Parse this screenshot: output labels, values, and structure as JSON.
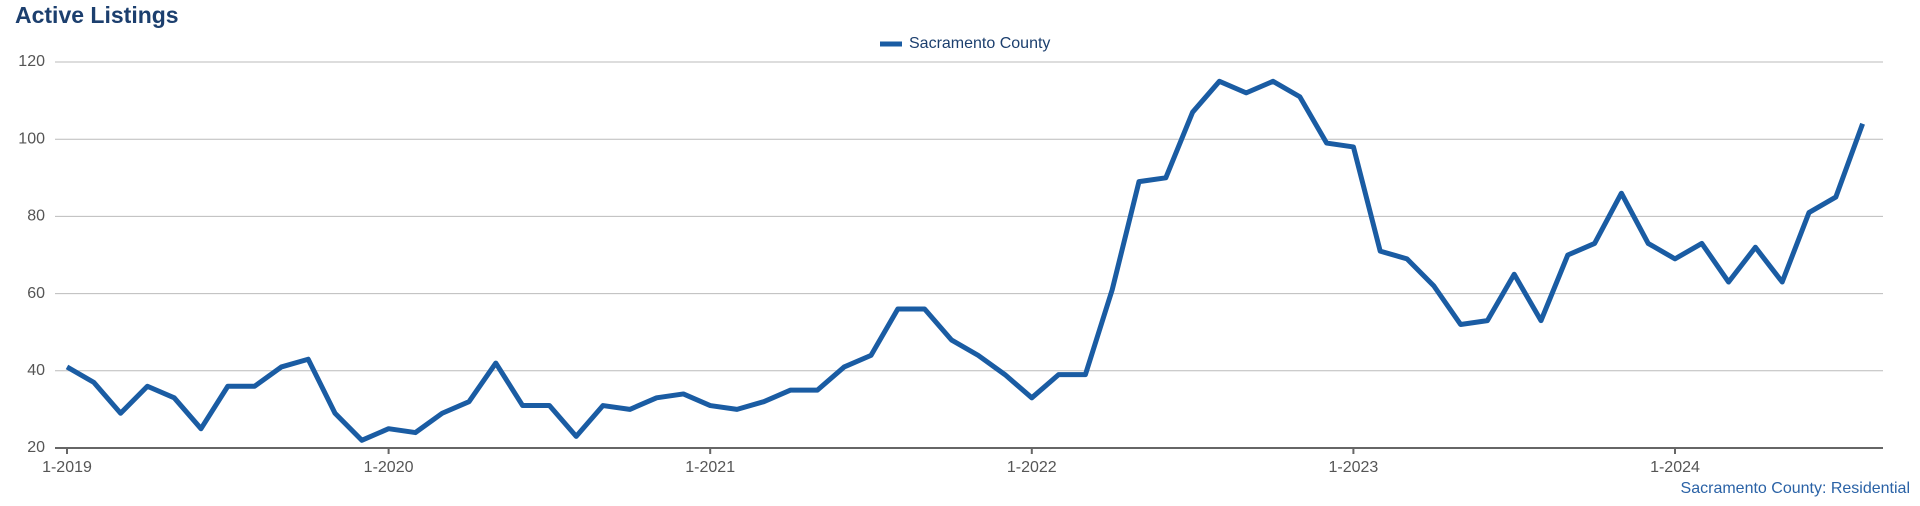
{
  "chart_data": {
    "type": "line",
    "title": "Active Listings",
    "source": "Sacramento County: Residential",
    "categories": [
      "1-2019",
      null,
      null,
      null,
      null,
      null,
      null,
      null,
      null,
      null,
      null,
      null,
      "1-2020",
      null,
      null,
      null,
      null,
      null,
      null,
      null,
      null,
      null,
      null,
      null,
      "1-2021",
      null,
      null,
      null,
      null,
      null,
      null,
      null,
      null,
      null,
      null,
      null,
      "1-2022",
      null,
      null,
      null,
      null,
      null,
      null,
      null,
      null,
      null,
      null,
      null,
      "1-2023",
      null,
      null,
      null,
      null,
      null,
      null,
      null,
      null,
      null,
      null,
      null,
      "1-2024",
      null,
      null,
      null,
      null,
      null,
      null,
      null
    ],
    "series": [
      {
        "name": "Sacramento County",
        "color": "#1a5ca3",
        "values": [
          41,
          37,
          29,
          36,
          33,
          25,
          36,
          36,
          41,
          43,
          29,
          22,
          25,
          24,
          29,
          32,
          42,
          31,
          31,
          23,
          31,
          30,
          33,
          34,
          31,
          30,
          32,
          35,
          35,
          41,
          44,
          56,
          56,
          48,
          44,
          39,
          33,
          39,
          39,
          61,
          89,
          90,
          107,
          115,
          112,
          115,
          111,
          99,
          98,
          71,
          69,
          62,
          52,
          53,
          65,
          53,
          70,
          73,
          86,
          73,
          69,
          73,
          63,
          72,
          63,
          81,
          85,
          104
        ]
      }
    ],
    "ylim": [
      20,
      120
    ],
    "yticks": [
      20,
      40,
      60,
      80,
      100,
      120
    ],
    "grid": true,
    "legend": "top"
  }
}
